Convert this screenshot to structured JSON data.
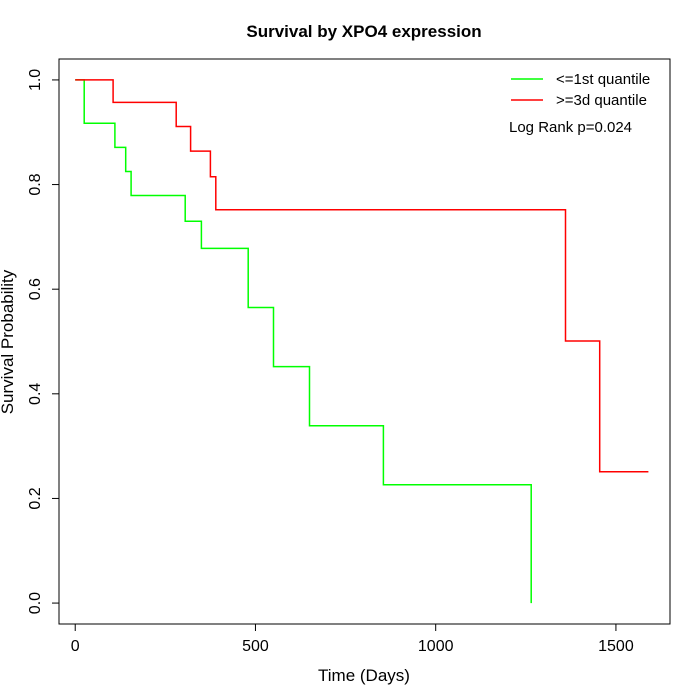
{
  "chart_data": {
    "type": "line",
    "title": "Survival by XPO4 expression",
    "xlabel": "Time (Days)",
    "ylabel": "Survival Probability",
    "xlim": [
      -45,
      1650
    ],
    "ylim": [
      -0.04,
      1.04
    ],
    "x_ticks": [
      0,
      500,
      1000,
      1500
    ],
    "x_tick_labels": [
      "0",
      "500",
      "1000",
      "1500"
    ],
    "y_ticks": [
      0.0,
      0.2,
      0.4,
      0.6,
      0.8,
      1.0
    ],
    "y_tick_labels": [
      "0.0",
      "0.2",
      "0.4",
      "0.6",
      "0.8",
      "1.0"
    ],
    "grid": false,
    "legend_position": "top-right",
    "annotation": "Log Rank p=0.024",
    "series": [
      {
        "name": "<=1st quantile",
        "color": "#00FF00",
        "step_type": "post",
        "x": [
          0,
          25,
          110,
          140,
          155,
          305,
          350,
          480,
          550,
          650,
          855,
          1265,
          1265
        ],
        "y": [
          1.0,
          0.917,
          0.871,
          0.825,
          0.779,
          0.73,
          0.678,
          0.565,
          0.452,
          0.339,
          0.226,
          0.226,
          0.0
        ]
      },
      {
        "name": ">=3d quantile",
        "color": "#FF0000",
        "step_type": "post",
        "x": [
          0,
          105,
          280,
          320,
          375,
          390,
          1360,
          1455,
          1590
        ],
        "y": [
          1.0,
          0.957,
          0.911,
          0.864,
          0.815,
          0.752,
          0.501,
          0.251,
          0.251
        ]
      }
    ]
  }
}
